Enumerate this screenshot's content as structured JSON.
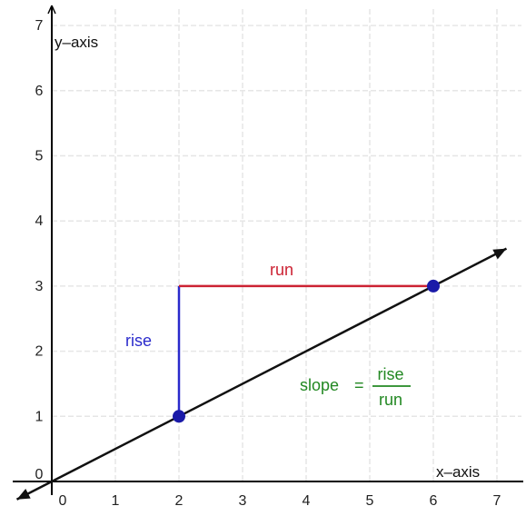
{
  "chart_data": {
    "type": "line",
    "xlabel": "x–axis",
    "ylabel": "y–axis",
    "xlim": [
      0,
      7
    ],
    "ylim": [
      0,
      7
    ],
    "x_ticks": [
      "0",
      "1",
      "2",
      "3",
      "4",
      "5",
      "6",
      "7"
    ],
    "y_ticks": [
      "0",
      "1",
      "2",
      "3",
      "4",
      "5",
      "6",
      "7"
    ],
    "grid": true,
    "line": {
      "points": [
        [
          2,
          1
        ],
        [
          6,
          3
        ]
      ],
      "slope": 0.5,
      "intercept": 0
    },
    "points": [
      {
        "x": 2,
        "y": 1
      },
      {
        "x": 6,
        "y": 3
      }
    ],
    "rise": {
      "from": [
        2,
        1
      ],
      "to": [
        2,
        3
      ],
      "label": "rise"
    },
    "run": {
      "from": [
        2,
        3
      ],
      "to": [
        6,
        3
      ],
      "label": "run"
    },
    "formula": {
      "lhs": "slope",
      "eq": "=",
      "numerator": "rise",
      "denominator": "run"
    }
  },
  "colors": {
    "axis": "#000000",
    "grid": "#e6e6e6",
    "line": "#111111",
    "point": "#1a1aa8",
    "rise": "#2a2acc",
    "run": "#cc2233",
    "formula": "#228822",
    "tick_text": "#222222"
  }
}
